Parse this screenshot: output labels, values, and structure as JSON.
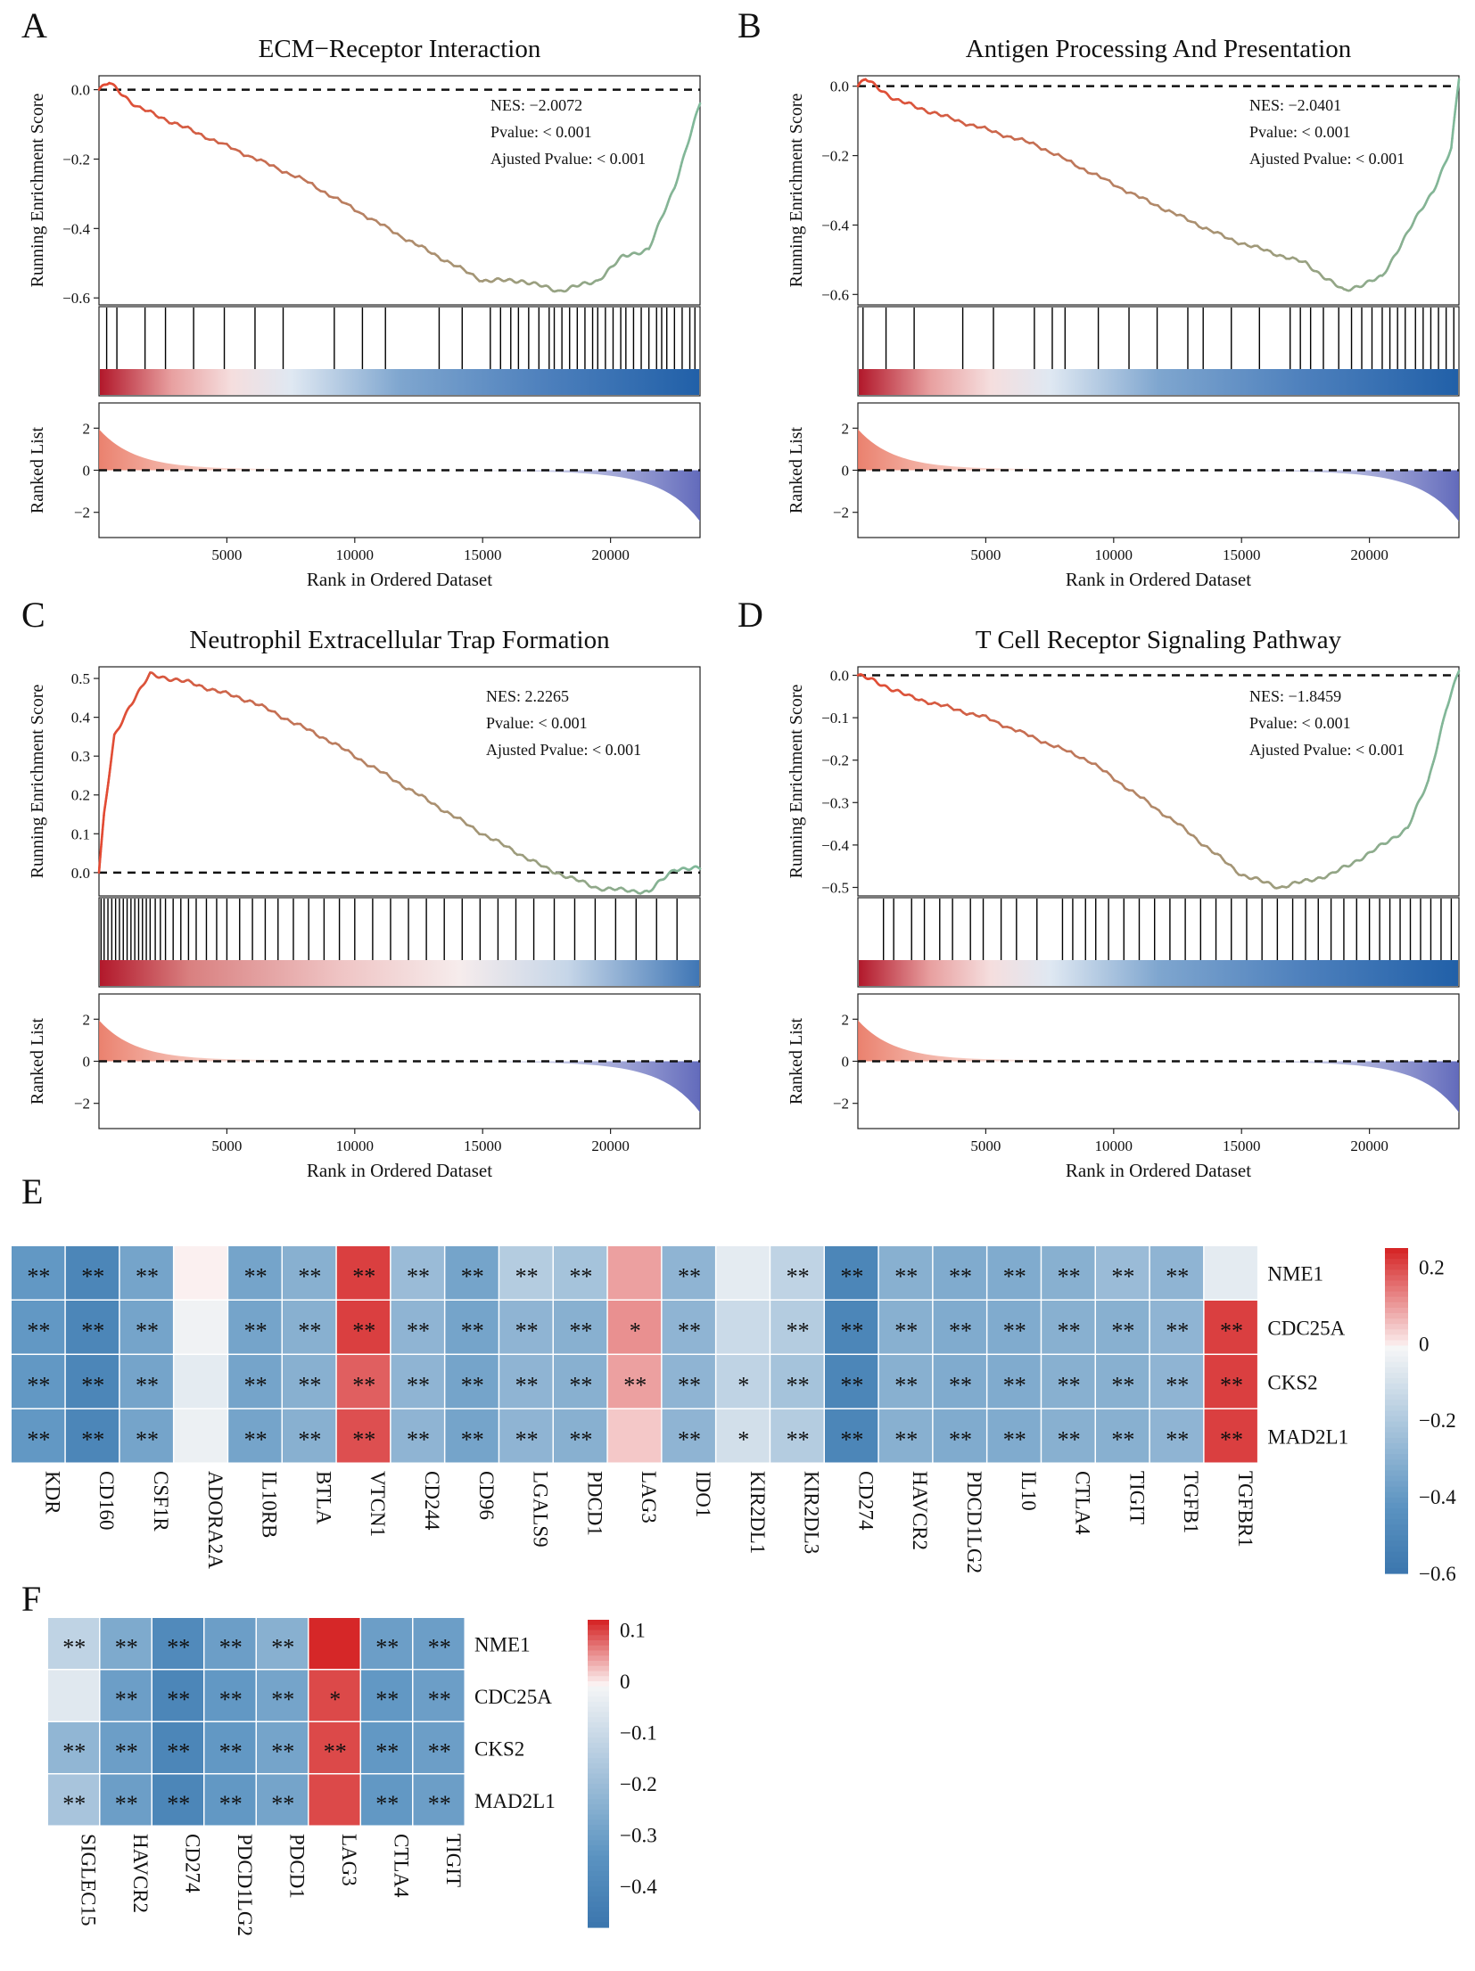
{
  "colors": {
    "red": "#d62728",
    "blue": "#2166ac",
    "neg_curve": "#7fb99a",
    "pos_curve": "#e34a33"
  },
  "gsea_common": {
    "ylabel_top": "Running Enrichment Score",
    "ylabel_bottom": "Ranked List",
    "xlabel": "Rank in Ordered Dataset",
    "x_ticks": [
      5000,
      10000,
      15000,
      20000
    ],
    "rank_ticks": [
      2,
      0,
      -2
    ],
    "n_genes": 23500
  },
  "chart_data": [
    {
      "type": "line",
      "panel": "A",
      "title": "ECM−Receptor Interaction",
      "stats": [
        "NES: −2.0072",
        "Pvalue: < 0.001",
        "Ajusted Pvalue: < 0.001"
      ],
      "ylim": [
        -0.62,
        0.04
      ],
      "y_ticks": [
        0.0,
        -0.2,
        -0.4,
        -0.6
      ],
      "y_tick_labels": [
        "0.0",
        "−0.2",
        "−0.4",
        "−0.6"
      ],
      "x": [
        0,
        400,
        1500,
        4000,
        8000,
        12000,
        15000,
        16500,
        18000,
        19500,
        20500,
        21500,
        22500,
        23500
      ],
      "y": [
        0.0,
        0.02,
        -0.05,
        -0.13,
        -0.26,
        -0.43,
        -0.55,
        -0.55,
        -0.58,
        -0.55,
        -0.48,
        -0.46,
        -0.28,
        -0.04
      ],
      "hits": [
        300,
        700,
        1800,
        2600,
        3700,
        4900,
        6100,
        7200,
        9200,
        10300,
        11200,
        13300,
        14200,
        15300,
        15700,
        16100,
        16400,
        16800,
        17200,
        17600,
        17800,
        18100,
        18400,
        18700,
        19000,
        19300,
        19500,
        19800,
        20100,
        20400,
        20600,
        20900,
        21200,
        21500,
        21800,
        22000,
        22200,
        22500,
        22800,
        23100,
        23300
      ]
    },
    {
      "type": "line",
      "panel": "B",
      "title": "Antigen Processing And Presentation",
      "stats": [
        "NES: −2.0401",
        "Pvalue: < 0.001",
        "Ajusted Pvalue: < 0.001"
      ],
      "ylim": [
        -0.63,
        0.03
      ],
      "y_ticks": [
        0.0,
        -0.2,
        -0.4,
        -0.6
      ],
      "y_tick_labels": [
        "0.0",
        "−0.2",
        "−0.4",
        "−0.6"
      ],
      "x": [
        0,
        300,
        1500,
        3500,
        7000,
        11000,
        14500,
        17500,
        19000,
        20500,
        21500,
        22500,
        23200,
        23500
      ],
      "y": [
        0.0,
        0.02,
        -0.04,
        -0.09,
        -0.17,
        -0.32,
        -0.44,
        -0.51,
        -0.59,
        -0.55,
        -0.42,
        -0.3,
        -0.18,
        0.02
      ],
      "hits": [
        200,
        1100,
        2200,
        4100,
        5300,
        6900,
        7600,
        8100,
        9400,
        10600,
        11700,
        12900,
        13500,
        14600,
        15700,
        16900,
        17300,
        17700,
        18200,
        18800,
        19300,
        19700,
        20100,
        20500,
        20800,
        21100,
        21400,
        21800,
        22100,
        22400,
        22700,
        23000,
        23300
      ]
    },
    {
      "type": "line",
      "panel": "C",
      "title": "Neutrophil Extracellular Trap Formation",
      "stats": [
        "NES: 2.2265",
        "Pvalue: < 0.001",
        "Ajusted Pvalue: < 0.001"
      ],
      "ylim": [
        -0.06,
        0.53
      ],
      "y_ticks": [
        0.0,
        0.1,
        0.2,
        0.3,
        0.4,
        0.5
      ],
      "y_tick_labels": [
        "0.0",
        "0.1",
        "0.2",
        "0.3",
        "0.4",
        "0.5"
      ],
      "x": [
        0,
        200,
        600,
        1200,
        2000,
        3500,
        6000,
        9000,
        12000,
        15000,
        17500,
        19500,
        21500,
        22500,
        23500
      ],
      "y": [
        0.0,
        0.15,
        0.35,
        0.43,
        0.51,
        0.49,
        0.44,
        0.34,
        0.22,
        0.1,
        0.01,
        -0.04,
        -0.05,
        0.01,
        0.01
      ],
      "hits": [
        80,
        200,
        350,
        500,
        650,
        800,
        950,
        1100,
        1250,
        1400,
        1550,
        1700,
        1850,
        2000,
        2200,
        2400,
        2600,
        2900,
        3200,
        3500,
        3800,
        4200,
        4600,
        5000,
        5500,
        6000,
        6500,
        7000,
        7600,
        8200,
        8800,
        9400,
        10000,
        10700,
        11400,
        12100,
        12800,
        13500,
        14200,
        14900,
        15600,
        16300,
        17000,
        17800,
        18600,
        19400,
        20200,
        21000,
        21800,
        22600
      ]
    },
    {
      "type": "line",
      "panel": "D",
      "title": "T Cell Receptor Signaling Pathway",
      "stats": [
        "NES: −1.8459",
        "Pvalue: < 0.001",
        "Ajusted Pvalue: < 0.001"
      ],
      "ylim": [
        -0.52,
        0.02
      ],
      "y_ticks": [
        0.0,
        -0.1,
        -0.2,
        -0.3,
        -0.4,
        -0.5
      ],
      "y_tick_labels": [
        "0.0",
        "−0.1",
        "−0.2",
        "−0.3",
        "−0.4",
        "−0.5"
      ],
      "x": [
        0,
        500,
        2000,
        5000,
        9000,
        12500,
        15000,
        16500,
        18500,
        20000,
        21500,
        22300,
        23000,
        23500
      ],
      "y": [
        0.0,
        -0.01,
        -0.05,
        -0.1,
        -0.2,
        -0.35,
        -0.47,
        -0.5,
        -0.47,
        -0.42,
        -0.36,
        -0.25,
        -0.08,
        0.01
      ],
      "hits": [
        1000,
        1400,
        2100,
        2600,
        3200,
        3700,
        4400,
        4900,
        5600,
        6200,
        7000,
        8000,
        8400,
        8900,
        9300,
        9800,
        10400,
        11000,
        11600,
        12200,
        12800,
        13400,
        14000,
        14600,
        15200,
        15800,
        16400,
        17000,
        17500,
        18000,
        18500,
        19000,
        19500,
        20000,
        20400,
        20800,
        21200,
        21600,
        22000,
        22400,
        22800,
        23200
      ]
    },
    {
      "type": "heatmap",
      "panel": "E",
      "rows": [
        "NME1",
        "CDC25A",
        "CKS2",
        "MAD2L1"
      ],
      "cols": [
        "KDR",
        "CD160",
        "CSF1R",
        "ADORA2A",
        "IL10RB",
        "BTLA",
        "VTCN1",
        "CD244",
        "CD96",
        "LGALS9",
        "PDCD1",
        "LAG3",
        "IDO1",
        "KIR2DL1",
        "KIR2DL3",
        "CD274",
        "HAVCR2",
        "PDCD1LG2",
        "IL10",
        "CTLA4",
        "TIGIT",
        "TGFB1",
        "TGFBR1"
      ],
      "values": [
        [
          -0.4,
          -0.5,
          -0.35,
          0.0,
          -0.35,
          -0.3,
          0.22,
          -0.25,
          -0.35,
          -0.18,
          -0.22,
          0.1,
          -0.28,
          -0.05,
          -0.15,
          -0.5,
          -0.3,
          -0.32,
          -0.32,
          -0.3,
          -0.25,
          -0.28,
          -0.05
        ],
        [
          -0.4,
          -0.5,
          -0.35,
          -0.02,
          -0.35,
          -0.3,
          0.22,
          -0.28,
          -0.35,
          -0.28,
          -0.3,
          0.12,
          -0.28,
          -0.12,
          -0.18,
          -0.5,
          -0.3,
          -0.32,
          -0.32,
          -0.3,
          -0.3,
          -0.28,
          0.22
        ],
        [
          -0.4,
          -0.5,
          -0.35,
          -0.05,
          -0.35,
          -0.3,
          0.18,
          -0.28,
          -0.35,
          -0.28,
          -0.3,
          0.1,
          -0.28,
          -0.15,
          -0.22,
          -0.5,
          -0.3,
          -0.32,
          -0.32,
          -0.3,
          -0.3,
          -0.28,
          0.22
        ],
        [
          -0.4,
          -0.5,
          -0.35,
          -0.03,
          -0.35,
          -0.3,
          0.2,
          -0.28,
          -0.35,
          -0.28,
          -0.3,
          0.05,
          -0.28,
          -0.1,
          -0.18,
          -0.5,
          -0.3,
          -0.32,
          -0.32,
          -0.3,
          -0.3,
          -0.28,
          0.22
        ]
      ],
      "sig": [
        [
          "**",
          "**",
          "**",
          "",
          "**",
          "**",
          "**",
          "**",
          "**",
          "**",
          "**",
          "",
          "**",
          "",
          "**",
          "**",
          "**",
          "**",
          "**",
          "**",
          "**",
          "**",
          ""
        ],
        [
          "**",
          "**",
          "**",
          "",
          "**",
          "**",
          "**",
          "**",
          "**",
          "**",
          "**",
          "*",
          "**",
          "",
          "**",
          "**",
          "**",
          "**",
          "**",
          "**",
          "**",
          "**",
          "**"
        ],
        [
          "**",
          "**",
          "**",
          "",
          "**",
          "**",
          "**",
          "**",
          "**",
          "**",
          "**",
          "**",
          "**",
          "*",
          "**",
          "**",
          "**",
          "**",
          "**",
          "**",
          "**",
          "**",
          "**"
        ],
        [
          "**",
          "**",
          "**",
          "",
          "**",
          "**",
          "**",
          "**",
          "**",
          "**",
          "**",
          "",
          "**",
          "*",
          "**",
          "**",
          "**",
          "**",
          "**",
          "**",
          "**",
          "**",
          "**"
        ]
      ],
      "vmin": -0.6,
      "vmax": 0.25,
      "colorbar_ticks": [
        0.2,
        0,
        -0.2,
        -0.4,
        -0.6
      ],
      "colorbar_tick_labels": [
        "0.2",
        "0",
        "−0.2",
        "−0.4",
        "−0.6"
      ]
    },
    {
      "type": "heatmap",
      "panel": "F",
      "rows": [
        "NME1",
        "CDC25A",
        "CKS2",
        "MAD2L1"
      ],
      "cols": [
        "SIGLEC15",
        "HAVCR2",
        "CD274",
        "PDCD1LG2",
        "PDCD1",
        "LAG3",
        "CTLA4",
        "TIGIT"
      ],
      "values": [
        [
          -0.12,
          -0.26,
          -0.38,
          -0.3,
          -0.24,
          0.12,
          -0.3,
          -0.3
        ],
        [
          -0.05,
          -0.3,
          -0.4,
          -0.32,
          -0.28,
          0.1,
          -0.32,
          -0.3
        ],
        [
          -0.22,
          -0.3,
          -0.4,
          -0.32,
          -0.28,
          0.1,
          -0.32,
          -0.3
        ],
        [
          -0.17,
          -0.3,
          -0.4,
          -0.32,
          -0.28,
          0.1,
          -0.32,
          -0.3
        ]
      ],
      "sig": [
        [
          "**",
          "**",
          "**",
          "**",
          "**",
          "",
          "**",
          "**"
        ],
        [
          "",
          "**",
          "**",
          "**",
          "**",
          "*",
          "**",
          "**"
        ],
        [
          "**",
          "**",
          "**",
          "**",
          "**",
          "**",
          "**",
          "**"
        ],
        [
          "**",
          "**",
          "**",
          "**",
          "**",
          "",
          "**",
          "**"
        ]
      ],
      "vmin": -0.48,
      "vmax": 0.12,
      "colorbar_ticks": [
        0.1,
        0,
        -0.1,
        -0.2,
        -0.3,
        -0.4
      ],
      "colorbar_tick_labels": [
        "0.1",
        "0",
        "−0.1",
        "−0.2",
        "−0.3",
        "−0.4"
      ]
    }
  ]
}
